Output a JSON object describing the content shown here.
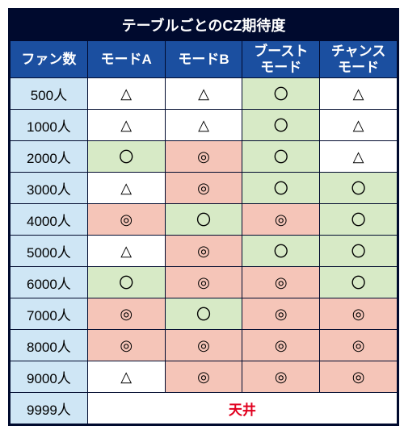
{
  "title": "テーブルごとのCZ期待度",
  "columns": [
    "ファン数",
    "モードA",
    "モードB",
    "ブースト\nモード",
    "チャンス\nモード"
  ],
  "row_labels": [
    "500人",
    "1000人",
    "2000人",
    "3000人",
    "4000人",
    "5000人",
    "6000人",
    "7000人",
    "8000人",
    "9000人",
    "9999人"
  ],
  "symbols": {
    "t": "△",
    "c": "〇",
    "d": "◎"
  },
  "cells": [
    [
      "t",
      "t",
      "c",
      "t"
    ],
    [
      "t",
      "t",
      "c",
      "t"
    ],
    [
      "c",
      "d",
      "c",
      "t"
    ],
    [
      "t",
      "d",
      "c",
      "c"
    ],
    [
      "d",
      "c",
      "d",
      "c"
    ],
    [
      "t",
      "d",
      "c",
      "c"
    ],
    [
      "c",
      "d",
      "d",
      "c"
    ],
    [
      "d",
      "c",
      "d",
      "d"
    ],
    [
      "d",
      "d",
      "d",
      "d"
    ],
    [
      "t",
      "d",
      "d",
      "d"
    ]
  ],
  "ceiling_text": "天井",
  "colors": {
    "header_bg": "#1b4fa0",
    "header_fg": "#ffffff",
    "title_bg": "#000a2e",
    "rowhdr_bg": "#cfe6f5",
    "border": "#000a2e",
    "ceiling_fg": "#e1001f",
    "cell_bg": {
      "t": "#ffffff",
      "c": "#d7eac6",
      "d": "#f5c5b8"
    }
  }
}
